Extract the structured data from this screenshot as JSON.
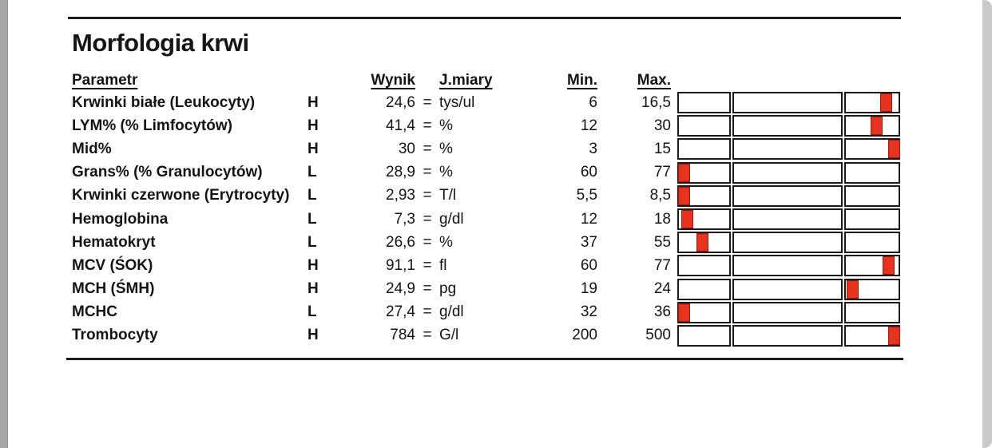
{
  "page": {
    "title": "Morfologia krwi",
    "columns": {
      "param": "Parametr",
      "wynik": "Wynik",
      "jmiary": "J.miary",
      "min": "Min.",
      "max": "Max."
    },
    "equals_sign": "=",
    "colors": {
      "marker_red": "#e5331f",
      "marker_border": "#9c170c",
      "line_black": "#1c1c1c",
      "page_edge_left_gray": "#a6a6a6",
      "page_edge_right_gray": "#c9c9c9"
    },
    "rows": [
      {
        "param": "Krwinki białe (Leukocyty)",
        "flag": "H",
        "wynik": "24,6",
        "unit": "tys/ul",
        "min": "6",
        "max": "16,5",
        "marker_pct": 91.0
      },
      {
        "param": "LYM% (% Limfocytów)",
        "flag": "H",
        "wynik": "41,4",
        "unit": "%",
        "min": "12",
        "max": "30",
        "marker_pct": 86.7
      },
      {
        "param": "Mid%",
        "flag": "H",
        "wynik": "30",
        "unit": "%",
        "min": "3",
        "max": "15",
        "marker_pct": 94.6
      },
      {
        "param": "Grans% (% Granulocytów)",
        "flag": "L",
        "wynik": "28,9",
        "unit": "%",
        "min": "60",
        "max": "77",
        "marker_pct": 0.5
      },
      {
        "param": "Krwinki czerwone (Erytrocyty)",
        "flag": "L",
        "wynik": "2,93",
        "unit": "T/l",
        "min": "5,5",
        "max": "8,5",
        "marker_pct": 0.5
      },
      {
        "param": "Hemoglobina",
        "flag": "L",
        "wynik": "7,3",
        "unit": "g/dl",
        "min": "12",
        "max": "18",
        "marker_pct": 1.8
      },
      {
        "param": "Hematokryt",
        "flag": "L",
        "wynik": "26,6",
        "unit": "%",
        "min": "37",
        "max": "55",
        "marker_pct": 8.6
      },
      {
        "param": "MCV (ŚOK)",
        "flag": "H",
        "wynik": "91,1",
        "unit": "fl",
        "min": "60",
        "max": "77",
        "marker_pct": 92.1
      },
      {
        "param": "MCH (ŚMH)",
        "flag": "H",
        "wynik": "24,9",
        "unit": "pg",
        "min": "19",
        "max": "24",
        "marker_pct": 76.0
      },
      {
        "param": "MCHC",
        "flag": "L",
        "wynik": "27,4",
        "unit": "g/dl",
        "min": "32",
        "max": "36",
        "marker_pct": 0.5
      },
      {
        "param": "Trombocyty",
        "flag": "H",
        "wynik": "784",
        "unit": "G/l",
        "min": "200",
        "max": "500",
        "marker_pct": 94.6
      }
    ]
  }
}
